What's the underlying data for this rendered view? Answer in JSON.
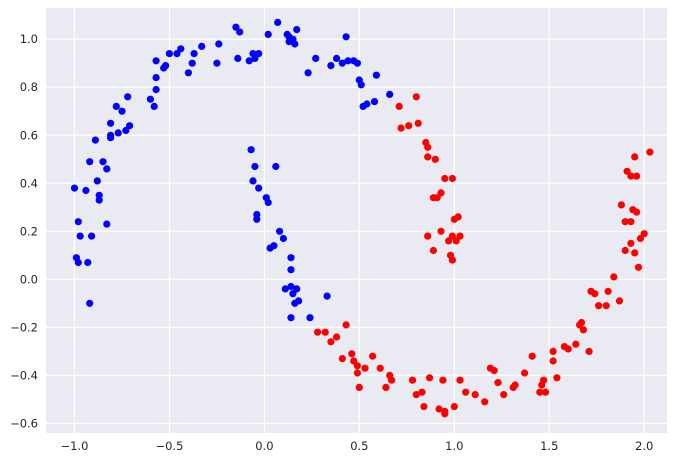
{
  "chart_data": {
    "type": "scatter",
    "title": "",
    "xlabel": "",
    "ylabel": "",
    "xlim": [
      -1.15,
      2.12
    ],
    "ylim": [
      -0.64,
      1.13
    ],
    "xticks": [
      -1.0,
      -0.5,
      0.0,
      0.5,
      1.0,
      1.5,
      2.0
    ],
    "yticks": [
      -0.6,
      -0.4,
      -0.2,
      0.0,
      0.2,
      0.4,
      0.6,
      0.8,
      1.0
    ],
    "xtick_labels": [
      "−1.0",
      "−0.5",
      "0.0",
      "0.5",
      "1.0",
      "1.5",
      "2.0"
    ],
    "ytick_labels": [
      "−0.6",
      "−0.4",
      "−0.2",
      "0.0",
      "0.2",
      "0.4",
      "0.6",
      "0.8",
      "1.0"
    ],
    "grid": true,
    "style": "seaborn",
    "colors": {
      "background": "#eaeaf2",
      "grid": "#ffffff",
      "series_blue": "#0000ff",
      "series_red": "#ff0000"
    },
    "series": [
      {
        "color": "#0000ff",
        "points": [
          [
            -1.0,
            0.38
          ],
          [
            -0.99,
            0.09
          ],
          [
            -0.98,
            0.07
          ],
          [
            -0.98,
            0.24
          ],
          [
            -0.97,
            0.18
          ],
          [
            -0.94,
            0.37
          ],
          [
            -0.93,
            0.07
          ],
          [
            -0.92,
            -0.1
          ],
          [
            -0.92,
            0.49
          ],
          [
            -0.91,
            0.18
          ],
          [
            -0.89,
            0.58
          ],
          [
            -0.88,
            0.41
          ],
          [
            -0.87,
            0.35
          ],
          [
            -0.87,
            0.33
          ],
          [
            -0.85,
            0.49
          ],
          [
            -0.83,
            0.46
          ],
          [
            -0.83,
            0.23
          ],
          [
            -0.81,
            0.59
          ],
          [
            -0.81,
            0.6
          ],
          [
            -0.81,
            0.65
          ],
          [
            -0.78,
            0.72
          ],
          [
            -0.77,
            0.61
          ],
          [
            -0.75,
            0.7
          ],
          [
            -0.73,
            0.62
          ],
          [
            -0.72,
            0.76
          ],
          [
            -0.71,
            0.64
          ],
          [
            -0.6,
            0.75
          ],
          [
            -0.58,
            0.72
          ],
          [
            -0.57,
            0.79
          ],
          [
            -0.57,
            0.84
          ],
          [
            -0.57,
            0.91
          ],
          [
            -0.53,
            0.88
          ],
          [
            -0.52,
            0.89
          ],
          [
            -0.5,
            0.94
          ],
          [
            -0.46,
            0.94
          ],
          [
            -0.44,
            0.96
          ],
          [
            -0.4,
            0.86
          ],
          [
            -0.38,
            0.9
          ],
          [
            -0.37,
            0.94
          ],
          [
            -0.33,
            0.97
          ],
          [
            -0.25,
            0.9
          ],
          [
            -0.24,
            0.98
          ],
          [
            -0.15,
            1.05
          ],
          [
            -0.14,
            0.92
          ],
          [
            -0.13,
            1.03
          ],
          [
            -0.08,
            0.91
          ],
          [
            -0.07,
            0.54
          ],
          [
            -0.06,
            0.94
          ],
          [
            -0.06,
            0.41
          ],
          [
            -0.05,
            0.47
          ],
          [
            -0.05,
            0.92
          ],
          [
            -0.04,
            0.25
          ],
          [
            -0.04,
            0.27
          ],
          [
            -0.03,
            0.94
          ],
          [
            -0.03,
            0.38
          ],
          [
            0.01,
            0.34
          ],
          [
            0.02,
            0.32
          ],
          [
            0.02,
            1.02
          ],
          [
            0.03,
            0.13
          ],
          [
            0.05,
            0.14
          ],
          [
            0.06,
            0.47
          ],
          [
            0.07,
            1.07
          ],
          [
            0.08,
            0.2
          ],
          [
            0.1,
            0.17
          ],
          [
            0.11,
            -0.04
          ],
          [
            0.12,
            1.02
          ],
          [
            0.13,
            0.99
          ],
          [
            0.13,
            1.01
          ],
          [
            0.14,
            0.09
          ],
          [
            0.14,
            0.04
          ],
          [
            0.14,
            -0.03
          ],
          [
            0.14,
            -0.16
          ],
          [
            0.15,
            -0.06
          ],
          [
            0.15,
            1.0
          ],
          [
            0.16,
            0.98
          ],
          [
            0.16,
            -0.1
          ],
          [
            0.17,
            -0.04
          ],
          [
            0.17,
            1.04
          ],
          [
            0.18,
            -0.09
          ],
          [
            0.23,
            0.86
          ],
          [
            0.24,
            -0.16
          ],
          [
            0.27,
            0.92
          ],
          [
            0.33,
            -0.07
          ],
          [
            0.35,
            0.89
          ],
          [
            0.38,
            0.92
          ],
          [
            0.41,
            0.9
          ],
          [
            0.43,
            1.01
          ],
          [
            0.44,
            0.91
          ],
          [
            0.47,
            0.91
          ],
          [
            0.49,
            0.9
          ],
          [
            0.5,
            0.83
          ],
          [
            0.51,
            0.81
          ],
          [
            0.52,
            0.72
          ],
          [
            0.54,
            0.73
          ],
          [
            0.58,
            0.74
          ],
          [
            0.59,
            0.85
          ],
          [
            0.66,
            0.77
          ]
        ]
      },
      {
        "color": "#ff0000",
        "points": [
          [
            0.28,
            -0.22
          ],
          [
            0.32,
            -0.22
          ],
          [
            0.35,
            -0.26
          ],
          [
            0.38,
            -0.24
          ],
          [
            0.41,
            -0.33
          ],
          [
            0.43,
            -0.19
          ],
          [
            0.46,
            -0.31
          ],
          [
            0.47,
            -0.34
          ],
          [
            0.49,
            -0.39
          ],
          [
            0.49,
            -0.36
          ],
          [
            0.5,
            -0.45
          ],
          [
            0.53,
            -0.37
          ],
          [
            0.57,
            -0.32
          ],
          [
            0.61,
            -0.37
          ],
          [
            0.64,
            -0.45
          ],
          [
            0.66,
            -0.4
          ],
          [
            0.67,
            -0.42
          ],
          [
            0.71,
            0.72
          ],
          [
            0.72,
            0.63
          ],
          [
            0.76,
            0.64
          ],
          [
            0.78,
            -0.42
          ],
          [
            0.8,
            -0.48
          ],
          [
            0.8,
            0.76
          ],
          [
            0.81,
            0.65
          ],
          [
            0.83,
            -0.47
          ],
          [
            0.84,
            -0.53
          ],
          [
            0.85,
            0.57
          ],
          [
            0.86,
            0.51
          ],
          [
            0.86,
            0.18
          ],
          [
            0.86,
            0.55
          ],
          [
            0.87,
            -0.41
          ],
          [
            0.89,
            0.34
          ],
          [
            0.89,
            0.12
          ],
          [
            0.9,
            0.5
          ],
          [
            0.91,
            0.34
          ],
          [
            0.92,
            -0.54
          ],
          [
            0.93,
            0.36
          ],
          [
            0.93,
            0.2
          ],
          [
            0.94,
            -0.42
          ],
          [
            0.95,
            -0.56
          ],
          [
            0.95,
            -0.55
          ],
          [
            0.95,
            0.42
          ],
          [
            0.97,
            0.16
          ],
          [
            0.98,
            0.1
          ],
          [
            0.99,
            0.42
          ],
          [
            0.99,
            0.18
          ],
          [
            0.99,
            0.08
          ],
          [
            1.0,
            0.25
          ],
          [
            1.0,
            -0.53
          ],
          [
            1.01,
            0.16
          ],
          [
            1.02,
            0.26
          ],
          [
            1.03,
            0.18
          ],
          [
            1.03,
            -0.42
          ],
          [
            1.06,
            -0.47
          ],
          [
            1.11,
            -0.48
          ],
          [
            1.16,
            -0.51
          ],
          [
            1.19,
            -0.37
          ],
          [
            1.21,
            -0.38
          ],
          [
            1.23,
            -0.43
          ],
          [
            1.26,
            -0.48
          ],
          [
            1.31,
            -0.45
          ],
          [
            1.32,
            -0.44
          ],
          [
            1.37,
            -0.39
          ],
          [
            1.41,
            -0.32
          ],
          [
            1.45,
            -0.47
          ],
          [
            1.46,
            -0.44
          ],
          [
            1.47,
            -0.42
          ],
          [
            1.48,
            -0.47
          ],
          [
            1.52,
            -0.34
          ],
          [
            1.52,
            -0.3
          ],
          [
            1.54,
            -0.41
          ],
          [
            1.58,
            -0.28
          ],
          [
            1.6,
            -0.29
          ],
          [
            1.64,
            -0.27
          ],
          [
            1.66,
            -0.19
          ],
          [
            1.67,
            -0.18
          ],
          [
            1.68,
            -0.21
          ],
          [
            1.71,
            -0.3
          ],
          [
            1.72,
            -0.05
          ],
          [
            1.74,
            -0.06
          ],
          [
            1.76,
            -0.11
          ],
          [
            1.8,
            -0.11
          ],
          [
            1.81,
            -0.05
          ],
          [
            1.84,
            0.01
          ],
          [
            1.87,
            -0.09
          ],
          [
            1.88,
            0.31
          ],
          [
            1.9,
            0.24
          ],
          [
            1.9,
            0.12
          ],
          [
            1.91,
            0.45
          ],
          [
            1.93,
            0.15
          ],
          [
            1.93,
            0.43
          ],
          [
            1.93,
            0.24
          ],
          [
            1.94,
            0.29
          ],
          [
            1.95,
            0.11
          ],
          [
            1.95,
            0.51
          ],
          [
            1.96,
            0.28
          ],
          [
            1.96,
            0.43
          ],
          [
            1.97,
            0.05
          ],
          [
            1.98,
            0.17
          ],
          [
            2.0,
            0.19
          ],
          [
            2.03,
            0.53
          ]
        ]
      }
    ]
  }
}
